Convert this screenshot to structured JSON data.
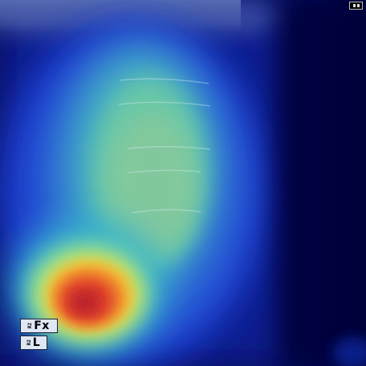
{
  "image": {
    "description_colors": {
      "background": "#000a5a",
      "hot": "#d62a1e",
      "warm": "#f7c02a",
      "mid": "#4fd3b0",
      "cool": "#2a5fd8"
    }
  },
  "markers": {
    "fx_prefix": "R2",
    "fx_label": "Fx",
    "l_prefix": "R2",
    "l_label": "L"
  },
  "corner_icon": "window-icon"
}
